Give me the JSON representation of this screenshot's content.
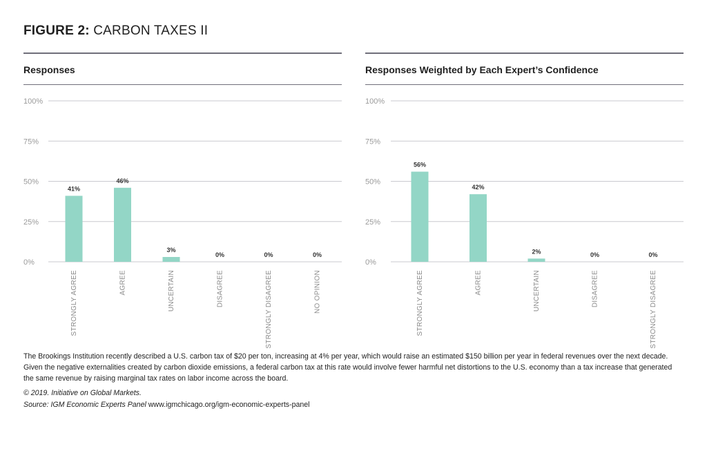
{
  "figure": {
    "title_bold": "FIGURE 2:",
    "title_rest": "CARBON TAXES II"
  },
  "chart_data": [
    {
      "type": "bar",
      "title": "Responses",
      "categories": [
        "STRONGLY AGREE",
        "AGREE",
        "UNCERTAIN",
        "DISAGREE",
        "STRONGLY DISAGREE",
        "NO OPINION"
      ],
      "values": [
        41,
        46,
        3,
        0,
        0,
        0
      ],
      "value_labels": [
        "41%",
        "46%",
        "3%",
        "0%",
        "0%",
        "0%"
      ],
      "ylim": [
        0,
        100
      ],
      "yticks": [
        "100%",
        "75%",
        "50%",
        "25%",
        "0%"
      ],
      "grid": true
    },
    {
      "type": "bar",
      "title": "Responses Weighted by Each Expert’s Confidence",
      "categories": [
        "STRONGLY AGREE",
        "AGREE",
        "UNCERTAIN",
        "DISAGREE",
        "STRONGLY DISAGREE"
      ],
      "values": [
        56,
        42,
        2,
        0,
        0
      ],
      "value_labels": [
        "56%",
        "42%",
        "2%",
        "0%",
        "0%"
      ],
      "ylim": [
        0,
        100
      ],
      "yticks": [
        "100%",
        "75%",
        "50%",
        "25%",
        "0%"
      ],
      "grid": true
    }
  ],
  "colors": {
    "bar": "#93d6c6",
    "grid": "#c9c9cf",
    "rule": "#6f6e7a",
    "tick_label": "#9a9a9a",
    "category_label": "#8a8a8a"
  },
  "footer": {
    "note": "The Brookings Institution recently described a U.S. carbon tax of $20 per ton, increasing at 4% per year, which would raise an estimated $150 billion per year in federal revenues over the next decade. Given the negative externalities created by carbon dioxide emissions, a federal carbon tax at this rate would involve fewer harmful net distortions to the U.S. economy than a tax increase that generated the same revenue by raising marginal tax rates on labor income across the board.",
    "copyright": "© 2019. Initiative on Global Markets.",
    "source_label": "Source: IGM Economic Experts Panel",
    "source_url": "www.igmchicago.org/igm-economic-experts-panel"
  }
}
